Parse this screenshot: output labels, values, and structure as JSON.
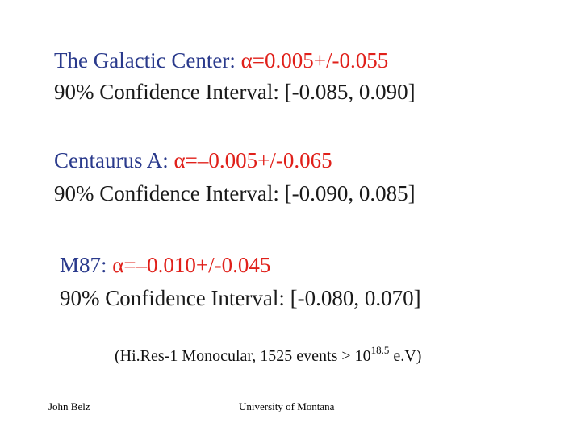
{
  "sources": [
    {
      "name_label": "The Galactic Center:",
      "alpha_symbol": "α",
      "alpha_rest": "=0.005+/-0.055",
      "ci_text": "90% Confidence Interval: [-0.085, 0.090]"
    },
    {
      "name_label": "Centaurus A:",
      "alpha_symbol": "α",
      "alpha_rest": "=–0.005+/-0.065",
      "ci_text": "90% Confidence Interval: [-0.090, 0.085]"
    },
    {
      "name_label": "M87:",
      "alpha_symbol": "α",
      "alpha_rest": "=–0.010+/-0.045",
      "ci_text": "90% Confidence Interval: [-0.080, 0.070]"
    }
  ],
  "note": {
    "prefix": "(Hi.Res-1 Monocular, 1525 events > 10",
    "exponent": "18.5",
    "suffix": " e.V)"
  },
  "footer": {
    "author": "John Belz",
    "institution": "University of Montana"
  },
  "colors": {
    "label_blue": "#2a3a8c",
    "alpha_red": "#e0201a",
    "text_dark": "#1a1a1a"
  }
}
